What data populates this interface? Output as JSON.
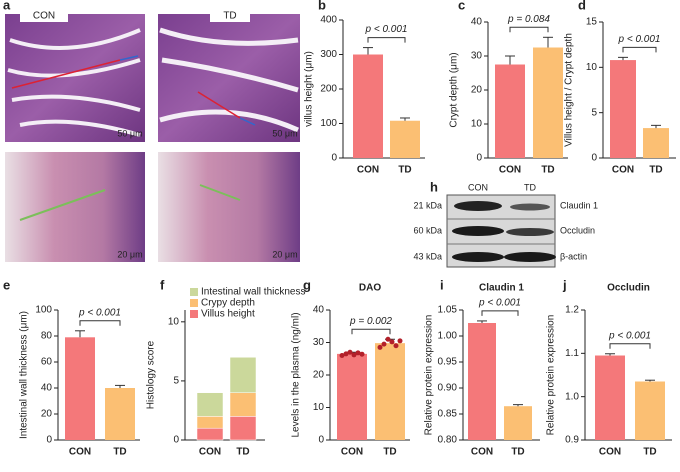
{
  "histology": {
    "panel": "a",
    "labels": [
      "CON",
      "TD"
    ],
    "scale_bars": [
      "50 μm",
      "50 μm",
      "20 μm",
      "20 μm"
    ]
  },
  "western_blot": {
    "panel": "h",
    "lanes": [
      "CON",
      "TD"
    ],
    "rows": [
      {
        "size": "21 kDa",
        "protein": "Claudin 1"
      },
      {
        "size": "60 kDa",
        "protein": "Occludin"
      },
      {
        "size": "43 kDa",
        "protein": "β-actin"
      }
    ]
  },
  "chart_data": [
    {
      "type": "bar",
      "panel": "b",
      "ylabel": "villus height (μm)",
      "categories": [
        "CON",
        "TD"
      ],
      "values": [
        300,
        108
      ],
      "errors": [
        20,
        8
      ],
      "colors": [
        "#f4787a",
        "#fbbf73"
      ],
      "ylim": [
        0,
        400
      ],
      "yticks": [
        0,
        100,
        200,
        300,
        400
      ],
      "annotation": "p < 0.001"
    },
    {
      "type": "bar",
      "panel": "c",
      "ylabel": "Crypt depth (μm)",
      "categories": [
        "CON",
        "TD"
      ],
      "values": [
        27.5,
        32.5
      ],
      "errors": [
        2.5,
        3
      ],
      "colors": [
        "#f4787a",
        "#fbbf73"
      ],
      "ylim": [
        0,
        40
      ],
      "yticks": [
        0,
        10,
        20,
        30,
        40
      ],
      "annotation": "p = 0.084"
    },
    {
      "type": "bar",
      "panel": "d",
      "ylabel": "Villus height / Crypt depth",
      "categories": [
        "CON",
        "TD"
      ],
      "values": [
        10.8,
        3.3
      ],
      "errors": [
        0.3,
        0.3
      ],
      "colors": [
        "#f4787a",
        "#fbbf73"
      ],
      "ylim": [
        0,
        15
      ],
      "yticks": [
        0,
        5,
        10,
        15
      ],
      "annotation": "p < 0.001"
    },
    {
      "type": "bar",
      "panel": "e",
      "ylabel": "Intestinal wall thickness (μm)",
      "categories": [
        "CON",
        "TD"
      ],
      "values": [
        79,
        40
      ],
      "errors": [
        5,
        2
      ],
      "colors": [
        "#f4787a",
        "#fbbf73"
      ],
      "ylim": [
        0,
        100
      ],
      "yticks": [
        0,
        20,
        40,
        60,
        80,
        100
      ],
      "annotation": "p < 0.001"
    },
    {
      "type": "stacked_bar",
      "panel": "f",
      "ylabel": "Histology score",
      "categories": [
        "CON",
        "TD"
      ],
      "series": [
        {
          "name": "Villus height",
          "color": "#f4787a",
          "values": [
            1,
            2
          ]
        },
        {
          "name": "Crypy depth",
          "color": "#fbbf73",
          "values": [
            1,
            2
          ]
        },
        {
          "name": "Intestinal wall thickness",
          "color": "#cbd89b",
          "values": [
            2,
            3
          ]
        }
      ],
      "ylim": [
        0,
        11
      ],
      "yticks": [
        0,
        5,
        10
      ]
    },
    {
      "type": "bar",
      "panel": "g",
      "title": "DAO",
      "ylabel": "Levels in the plasma (ng/ml)",
      "categories": [
        "CON",
        "TD"
      ],
      "values": [
        26.5,
        29.8
      ],
      "errors": [
        0.5,
        1.2
      ],
      "points": [
        [
          26,
          26.5,
          27,
          26.2,
          26.8,
          26.4
        ],
        [
          28.5,
          29.5,
          31,
          30.2,
          29,
          30.5
        ]
      ],
      "colors": [
        "#f4787a",
        "#fbbf73"
      ],
      "ylim": [
        0,
        40
      ],
      "yticks": [
        0,
        10,
        20,
        30,
        40
      ],
      "annotation": "p = 0.002"
    },
    {
      "type": "bar",
      "panel": "i",
      "title": "Claudin 1",
      "ylabel": "Relative protein expression",
      "categories": [
        "CON",
        "TD"
      ],
      "values": [
        1.025,
        0.865
      ],
      "errors": [
        0.004,
        0.003
      ],
      "colors": [
        "#f4787a",
        "#fbbf73"
      ],
      "ylim": [
        0.8,
        1.05
      ],
      "yticks": [
        {
          "value": 0.8,
          "label": "0.80"
        },
        0.85,
        {
          "value": 0.9,
          "label": "0.90"
        },
        0.95,
        {
          "value": 1,
          "label": "1.00"
        },
        1.05
      ],
      "annotation": "p < 0.001"
    },
    {
      "type": "bar",
      "panel": "j",
      "title": "Occludin",
      "ylabel": "Relative protein expression",
      "categories": [
        "CON",
        "TD"
      ],
      "values": [
        1.095,
        1.035
      ],
      "errors": [
        0.004,
        0.003
      ],
      "colors": [
        "#f4787a",
        "#fbbf73"
      ],
      "ylim": [
        0.9,
        1.2
      ],
      "yticks": [
        0.9,
        {
          "value": 1,
          "label": "1.0"
        },
        1.1,
        1.2
      ],
      "annotation": "p < 0.001"
    }
  ]
}
